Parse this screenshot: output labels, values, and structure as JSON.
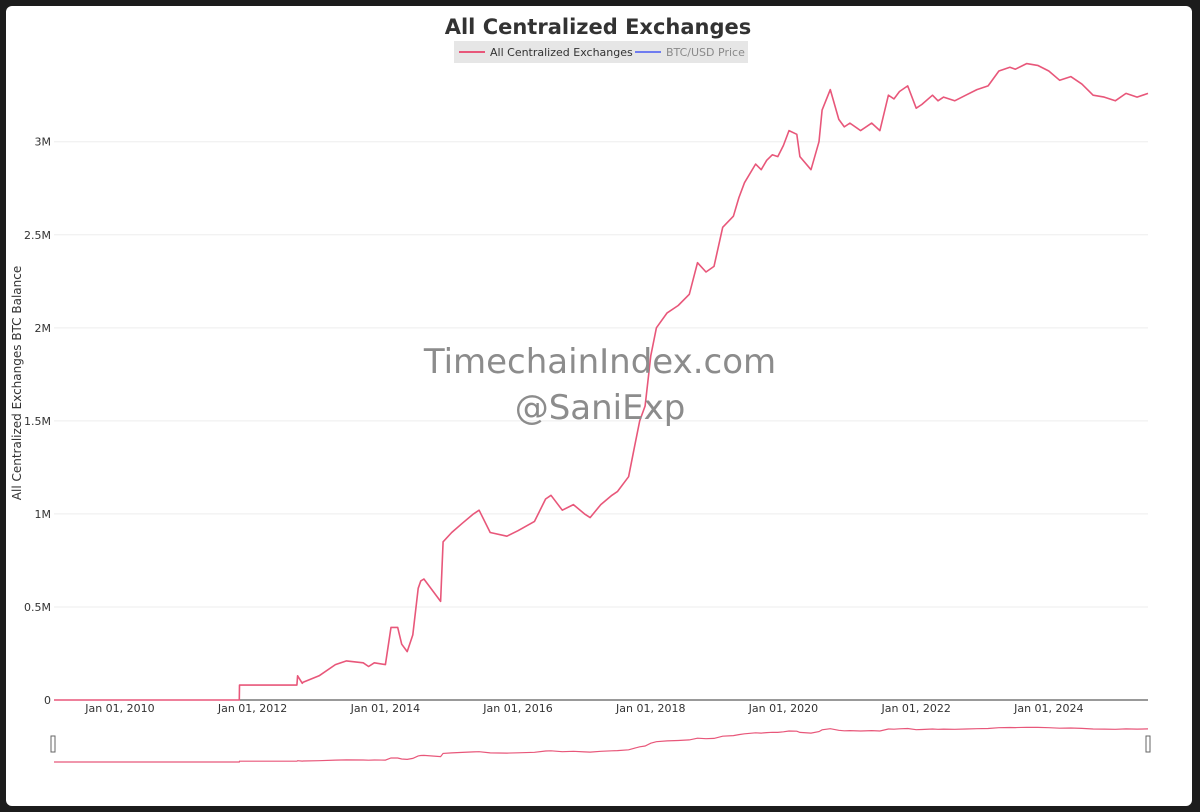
{
  "colors": {
    "series_primary": "#e8577a",
    "series_secondary": "#6f7cf0",
    "grid": "#eeeeee",
    "axis": "#333333",
    "legend_bg": "#e6e6e6"
  },
  "watermark": {
    "line1": "TimechainIndex.com",
    "line2": "@SaniExp"
  },
  "chart_data": {
    "type": "line",
    "title": "All Centralized Exchanges",
    "ylabel": "All Centralized Exchanges BTC Balance",
    "xlabel": "",
    "xlim": [
      "2009-01-03",
      "2025-06-30"
    ],
    "ylim": [
      0,
      3450000
    ],
    "grid": true,
    "legend_position": "top-center",
    "legend": [
      {
        "name": "All Centralized Exchanges",
        "color": "#e8577a",
        "visible": true
      },
      {
        "name": "BTC/USD Price",
        "color": "#6f7cf0",
        "visible": false
      }
    ],
    "y_ticks": [
      {
        "value": 0,
        "label": "0"
      },
      {
        "value": 500000,
        "label": "0.5M"
      },
      {
        "value": 1000000,
        "label": "1M"
      },
      {
        "value": 1500000,
        "label": "1.5M"
      },
      {
        "value": 2000000,
        "label": "2M"
      },
      {
        "value": 2500000,
        "label": "2.5M"
      },
      {
        "value": 3000000,
        "label": "3M"
      }
    ],
    "x_ticks": [
      {
        "value": "2010-01-01",
        "label": "Jan 01, 2010"
      },
      {
        "value": "2012-01-01",
        "label": "Jan 01, 2012"
      },
      {
        "value": "2014-01-01",
        "label": "Jan 01, 2014"
      },
      {
        "value": "2016-01-01",
        "label": "Jan 01, 2016"
      },
      {
        "value": "2018-01-01",
        "label": "Jan 01, 2018"
      },
      {
        "value": "2020-01-01",
        "label": "Jan 01, 2020"
      },
      {
        "value": "2022-01-01",
        "label": "Jan 01, 2022"
      },
      {
        "value": "2024-01-01",
        "label": "Jan 01, 2024"
      }
    ],
    "series": [
      {
        "name": "All Centralized Exchanges",
        "x": [
          "2009-01-03",
          "2011-10-20",
          "2011-10-21",
          "2012-09-01",
          "2012-09-05",
          "2012-10-01",
          "2012-10-05",
          "2013-01-01",
          "2013-04-01",
          "2013-06-01",
          "2013-09-01",
          "2013-10-01",
          "2013-11-01",
          "2014-01-01",
          "2014-02-01",
          "2014-03-10",
          "2014-04-01",
          "2014-05-01",
          "2014-06-01",
          "2014-07-01",
          "2014-07-15",
          "2014-08-01",
          "2014-11-01",
          "2014-11-15",
          "2015-01-01",
          "2015-03-01",
          "2015-05-01",
          "2015-06-01",
          "2015-08-01",
          "2015-11-01",
          "2016-01-01",
          "2016-04-01",
          "2016-06-01",
          "2016-07-01",
          "2016-09-01",
          "2016-11-01",
          "2017-01-01",
          "2017-02-01",
          "2017-04-01",
          "2017-06-01",
          "2017-07-01",
          "2017-09-01",
          "2017-10-01",
          "2017-11-01",
          "2017-12-01",
          "2018-01-01",
          "2018-02-01",
          "2018-04-01",
          "2018-06-01",
          "2018-08-01",
          "2018-09-15",
          "2018-11-01",
          "2018-12-15",
          "2019-02-01",
          "2019-04-01",
          "2019-05-01",
          "2019-06-01",
          "2019-08-01",
          "2019-09-01",
          "2019-10-01",
          "2019-11-01",
          "2019-12-01",
          "2020-01-01",
          "2020-02-01",
          "2020-03-15",
          "2020-04-01",
          "2020-06-01",
          "2020-07-15",
          "2020-08-01",
          "2020-09-15",
          "2020-11-01",
          "2020-12-01",
          "2021-01-01",
          "2021-03-01",
          "2021-05-01",
          "2021-06-15",
          "2021-08-01",
          "2021-09-01",
          "2021-10-01",
          "2021-11-15",
          "2022-01-01",
          "2022-02-01",
          "2022-04-01",
          "2022-05-01",
          "2022-06-01",
          "2022-08-01",
          "2022-10-01",
          "2022-12-01",
          "2023-02-01",
          "2023-04-01",
          "2023-06-01",
          "2023-07-01",
          "2023-09-01",
          "2023-11-01",
          "2024-01-01",
          "2024-03-01",
          "2024-05-01",
          "2024-07-01",
          "2024-09-01",
          "2024-11-01",
          "2025-01-01",
          "2025-03-01",
          "2025-05-01",
          "2025-06-30"
        ],
        "y": [
          0,
          0,
          80000,
          80000,
          130000,
          90000,
          95000,
          130000,
          190000,
          210000,
          200000,
          180000,
          200000,
          190000,
          390000,
          390000,
          300000,
          260000,
          350000,
          600000,
          640000,
          650000,
          530000,
          850000,
          900000,
          950000,
          1000000,
          1020000,
          900000,
          880000,
          910000,
          960000,
          1080000,
          1100000,
          1020000,
          1050000,
          1000000,
          980000,
          1050000,
          1100000,
          1120000,
          1200000,
          1350000,
          1500000,
          1580000,
          1850000,
          2000000,
          2080000,
          2120000,
          2180000,
          2350000,
          2300000,
          2330000,
          2540000,
          2600000,
          2700000,
          2780000,
          2880000,
          2850000,
          2900000,
          2930000,
          2920000,
          2980000,
          3060000,
          3040000,
          2920000,
          2850000,
          3000000,
          3170000,
          3280000,
          3120000,
          3080000,
          3100000,
          3060000,
          3100000,
          3060000,
          3250000,
          3230000,
          3270000,
          3300000,
          3180000,
          3200000,
          3250000,
          3220000,
          3240000,
          3220000,
          3250000,
          3280000,
          3300000,
          3380000,
          3400000,
          3390000,
          3420000,
          3410000,
          3380000,
          3330000,
          3350000,
          3310000,
          3250000,
          3240000,
          3220000,
          3260000,
          3240000,
          3260000
        ]
      }
    ]
  }
}
